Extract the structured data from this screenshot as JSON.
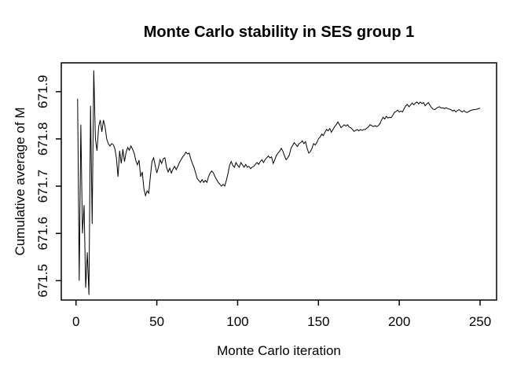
{
  "chart_data": {
    "type": "line",
    "title": "Monte Carlo stability in SES group 1",
    "xlabel": "Monte Carlo iteration",
    "ylabel": "Cumulative average of M",
    "line_color": "#000000",
    "background_color": "#ffffff",
    "grid": false,
    "legend_position": "none",
    "x_ticks": [
      0,
      50,
      100,
      150,
      200,
      250
    ],
    "y_ticks": [
      671.5,
      671.6,
      671.7,
      671.8,
      671.9
    ],
    "y_tick_labels": [
      "671.5",
      "671.6",
      "671.7",
      "671.8",
      "671.9"
    ],
    "x_range": [
      -9.1,
      260.2
    ],
    "y_range": [
      671.459,
      671.961
    ],
    "x_start": 1,
    "series": [
      {
        "name": "cumulative-average-of-M",
        "values": [
          671.885,
          671.5,
          671.83,
          671.6,
          671.66,
          671.485,
          671.56,
          671.47,
          671.87,
          671.62,
          671.945,
          671.8,
          671.775,
          671.825,
          671.84,
          671.815,
          671.84,
          671.825,
          671.8,
          671.79,
          671.785,
          671.79,
          671.788,
          671.78,
          671.76,
          671.72,
          671.775,
          671.748,
          671.778,
          671.752,
          671.772,
          671.782,
          671.776,
          671.785,
          671.778,
          671.77,
          671.754,
          671.745,
          671.755,
          671.72,
          671.73,
          671.695,
          671.68,
          671.69,
          671.685,
          671.72,
          671.752,
          671.76,
          671.744,
          671.728,
          671.74,
          671.756,
          671.748,
          671.758,
          671.76,
          671.74,
          671.73,
          671.738,
          671.728,
          671.736,
          671.742,
          671.735,
          671.742,
          671.75,
          671.756,
          671.762,
          671.766,
          671.772,
          671.768,
          671.77,
          671.758,
          671.748,
          671.74,
          671.728,
          671.716,
          671.712,
          671.708,
          671.714,
          671.708,
          671.712,
          671.708,
          671.72,
          671.728,
          671.732,
          671.728,
          671.72,
          671.714,
          671.708,
          671.704,
          671.7,
          671.704,
          671.7,
          671.712,
          671.726,
          671.744,
          671.752,
          671.744,
          671.74,
          671.75,
          671.744,
          671.74,
          671.75,
          671.745,
          671.74,
          671.746,
          671.74,
          671.742,
          671.737,
          671.74,
          671.742,
          671.746,
          671.75,
          671.746,
          671.752,
          671.756,
          671.75,
          671.756,
          671.76,
          671.764,
          671.76,
          671.762,
          671.748,
          671.756,
          671.765,
          671.77,
          671.774,
          671.78,
          671.774,
          671.764,
          671.756,
          671.76,
          671.766,
          671.78,
          671.786,
          671.792,
          671.788,
          671.784,
          671.79,
          671.792,
          671.796,
          671.79,
          671.794,
          671.78,
          671.77,
          671.773,
          671.78,
          671.79,
          671.787,
          671.792,
          671.8,
          671.804,
          671.81,
          671.807,
          671.814,
          671.82,
          671.817,
          671.822,
          671.814,
          671.82,
          671.826,
          671.83,
          671.836,
          671.83,
          671.824,
          671.827,
          671.83,
          671.827,
          671.83,
          671.825,
          671.824,
          671.82,
          671.816,
          671.818,
          671.82,
          671.817,
          671.82,
          671.818,
          671.82,
          671.82,
          671.823,
          671.826,
          671.83,
          671.828,
          671.826,
          671.828,
          671.826,
          671.828,
          671.832,
          671.84,
          671.846,
          671.842,
          671.848,
          671.844,
          671.846,
          671.845,
          671.85,
          671.856,
          671.858,
          671.861,
          671.857,
          671.859,
          671.857,
          671.864,
          671.87,
          671.873,
          671.868,
          671.872,
          671.876,
          671.872,
          671.876,
          671.878,
          671.874,
          671.878,
          671.875,
          671.877,
          671.87,
          671.874,
          671.877,
          671.871,
          671.866,
          671.863,
          671.862,
          671.865,
          671.867,
          671.868,
          671.865,
          671.866,
          671.864,
          671.866,
          671.864,
          671.863,
          671.862,
          671.859,
          671.861,
          671.857,
          671.86,
          671.862,
          671.859,
          671.857,
          671.86,
          671.857,
          671.856,
          671.858,
          671.86,
          671.861,
          671.862,
          671.862,
          671.863,
          671.864,
          671.865
        ]
      }
    ]
  }
}
